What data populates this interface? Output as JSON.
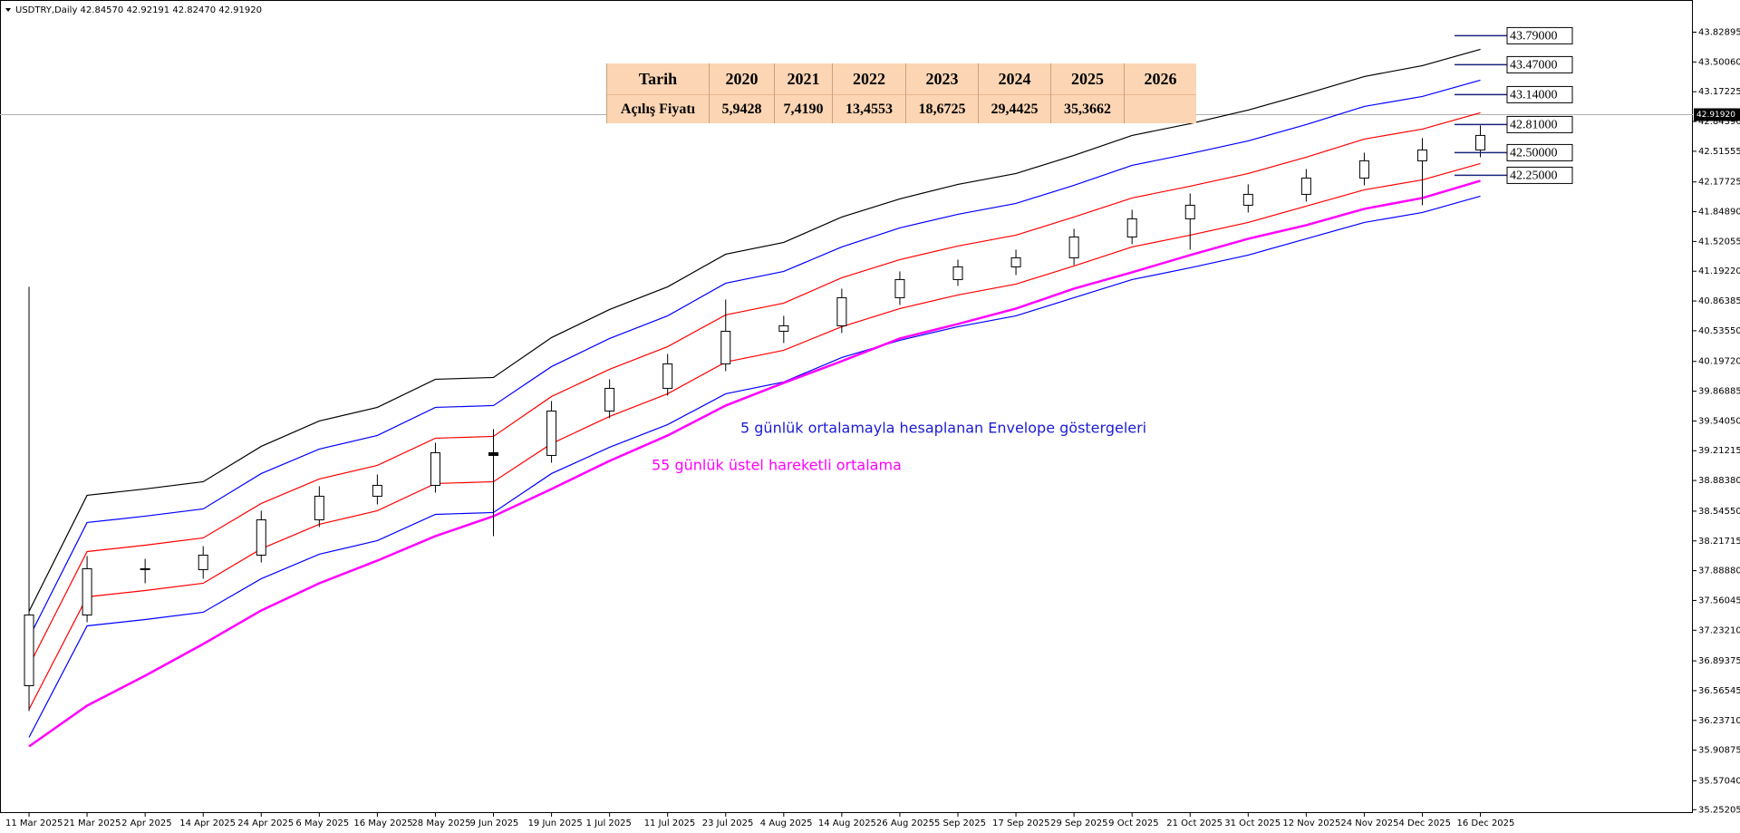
{
  "chart_data": {
    "type": "candlestick",
    "title": "USDTRY,Daily  42.84570 42.92191 42.82470 42.91920",
    "categories": [
      "11 Mar 2025",
      "21 Mar 2025",
      "2 Apr 2025",
      "14 Apr 2025",
      "24 Apr 2025",
      "6 May 2025",
      "16 May 2025",
      "28 May 2025",
      "9 Jun 2025",
      "19 Jun 2025",
      "1 Jul 2025",
      "11 Jul 2025",
      "23 Jul 2025",
      "4 Aug 2025",
      "14 Aug 2025",
      "26 Aug 2025",
      "5 Sep 2025",
      "17 Sep 2025",
      "29 Sep 2025",
      "9 Oct 2025",
      "21 Oct 2025",
      "31 Oct 2025",
      "12 Nov 2025",
      "24 Nov 2025",
      "4 Dec 2025",
      "16 Dec 2025"
    ],
    "open": [
      36.62,
      37.4,
      37.91,
      37.9,
      38.06,
      38.45,
      38.71,
      38.83,
      39.19,
      39.16,
      39.65,
      39.9,
      40.17,
      40.53,
      40.59,
      40.9,
      41.1,
      41.24,
      41.34,
      41.57,
      41.77,
      41.92,
      42.04,
      42.22,
      42.41,
      42.53
    ],
    "high": [
      41.02,
      38.05,
      38.02,
      38.16,
      38.55,
      38.82,
      38.95,
      39.3,
      39.45,
      39.76,
      40.0,
      40.28,
      40.88,
      40.7,
      41.0,
      41.19,
      41.32,
      41.43,
      41.66,
      41.87,
      42.05,
      42.15,
      42.32,
      42.5,
      42.66,
      42.8
    ],
    "low": [
      36.34,
      37.32,
      37.75,
      37.8,
      37.98,
      38.37,
      38.62,
      38.75,
      38.27,
      39.08,
      39.57,
      39.82,
      40.09,
      40.4,
      40.51,
      40.82,
      41.03,
      41.15,
      41.26,
      41.49,
      41.43,
      41.84,
      41.96,
      42.14,
      41.92,
      42.45
    ],
    "close": [
      37.4,
      37.91,
      37.9,
      38.06,
      38.45,
      38.71,
      38.83,
      39.19,
      39.16,
      39.65,
      39.9,
      40.17,
      40.53,
      40.59,
      40.9,
      41.1,
      41.24,
      41.34,
      41.57,
      41.77,
      41.92,
      42.04,
      42.22,
      42.41,
      42.53,
      42.69
    ],
    "series": [
      {
        "color": "#000000",
        "values": [
          37.44,
          38.72,
          38.79,
          38.87,
          39.26,
          39.54,
          39.69,
          40.0,
          40.02,
          40.46,
          40.77,
          41.02,
          41.38,
          41.51,
          41.79,
          41.99,
          42.15,
          42.27,
          42.47,
          42.69,
          42.82,
          42.97,
          43.15,
          43.34,
          43.46,
          43.64
        ]
      },
      {
        "color": "#0000ff",
        "values": [
          37.15,
          38.42,
          38.49,
          38.57,
          38.96,
          39.23,
          39.38,
          39.69,
          39.71,
          40.14,
          40.45,
          40.7,
          41.06,
          41.19,
          41.46,
          41.67,
          41.82,
          41.94,
          42.14,
          42.36,
          42.49,
          42.63,
          42.81,
          43.01,
          43.12,
          43.3
        ]
      },
      {
        "color": "#ff0000",
        "values": [
          36.84,
          38.1,
          38.17,
          38.25,
          38.63,
          38.9,
          39.05,
          39.35,
          39.37,
          39.81,
          40.11,
          40.36,
          40.71,
          40.84,
          41.12,
          41.32,
          41.47,
          41.59,
          41.79,
          42.0,
          42.13,
          42.27,
          42.45,
          42.65,
          42.76,
          42.94
        ]
      },
      {
        "color": "#ff0000",
        "values": [
          36.36,
          37.6,
          37.67,
          37.75,
          38.13,
          38.4,
          38.55,
          38.85,
          38.87,
          39.29,
          39.59,
          39.84,
          40.19,
          40.32,
          40.58,
          40.78,
          40.93,
          41.05,
          41.25,
          41.46,
          41.59,
          41.73,
          41.91,
          42.09,
          42.2,
          42.38
        ]
      },
      {
        "color": "#0000ff",
        "values": [
          36.05,
          37.28,
          37.35,
          37.43,
          37.8,
          38.07,
          38.22,
          38.51,
          38.53,
          38.96,
          39.25,
          39.5,
          39.84,
          39.97,
          40.24,
          40.43,
          40.58,
          40.7,
          40.9,
          41.1,
          41.23,
          41.37,
          41.55,
          41.73,
          41.84,
          42.02
        ]
      },
      {
        "color": "#ff00ff",
        "values": [
          35.95,
          36.4,
          36.73,
          37.08,
          37.45,
          37.75,
          38.0,
          38.27,
          38.49,
          38.79,
          39.1,
          39.38,
          39.71,
          39.96,
          40.2,
          40.45,
          40.61,
          40.78,
          41.0,
          41.18,
          41.37,
          41.55,
          41.7,
          41.88,
          42.0,
          42.19
        ]
      }
    ],
    "annotations": [
      {
        "text": "5 günlük ortalamayla hesaplanan Envelope göstergeleri",
        "color": "#1c1cd6"
      },
      {
        "text": "55 günlük üstel hareketli ortalama",
        "color": "#ff00ff"
      }
    ],
    "levels": [
      {
        "value": 43.79,
        "label": "43.79000"
      },
      {
        "value": 43.47,
        "label": "43.47000"
      },
      {
        "value": 43.14,
        "label": "43.14000"
      },
      {
        "value": 42.81,
        "label": "42.81000"
      },
      {
        "value": 42.5,
        "label": "42.50000"
      },
      {
        "value": 42.25,
        "label": "42.25000"
      }
    ],
    "last_price": {
      "value": 42.9192,
      "label": "42.91920"
    },
    "ylim": [
      35.215,
      44.184
    ],
    "yticks": [
      {
        "value": 43.82895,
        "label": "43.82895"
      },
      {
        "value": 43.5006,
        "label": "43.50060"
      },
      {
        "value": 43.17225,
        "label": "43.17225"
      },
      {
        "value": 42.8439,
        "label": "42.84390"
      },
      {
        "value": 42.51555,
        "label": "42.51555"
      },
      {
        "value": 42.17725,
        "label": "42.17725"
      },
      {
        "value": 41.8489,
        "label": "41.84890"
      },
      {
        "value": 41.52055,
        "label": "41.52055"
      },
      {
        "value": 41.1922,
        "label": "41.19220"
      },
      {
        "value": 40.86385,
        "label": "40.86385"
      },
      {
        "value": 40.5355,
        "label": "40.53550"
      },
      {
        "value": 40.1972,
        "label": "40.19720"
      },
      {
        "value": 39.86885,
        "label": "39.86885"
      },
      {
        "value": 39.5405,
        "label": "39.54050"
      },
      {
        "value": 39.21215,
        "label": "39.21215"
      },
      {
        "value": 38.8838,
        "label": "38.88380"
      },
      {
        "value": 38.5455,
        "label": "38.54550"
      },
      {
        "value": 38.21715,
        "label": "38.21715"
      },
      {
        "value": 37.8888,
        "label": "37.88880"
      },
      {
        "value": 37.56045,
        "label": "37.56045"
      },
      {
        "value": 37.2321,
        "label": "37.23210"
      },
      {
        "value": 36.89375,
        "label": "36.89375"
      },
      {
        "value": 36.56545,
        "label": "36.56545"
      },
      {
        "value": 36.2371,
        "label": "36.23710"
      },
      {
        "value": 35.90875,
        "label": "35.90875"
      },
      {
        "value": 35.5704,
        "label": "35.57040"
      },
      {
        "value": 35.25205,
        "label": "35.25205"
      }
    ],
    "grid": false
  },
  "table": {
    "header": [
      "Tarih",
      "2020",
      "2021",
      "2022",
      "2023",
      "2024",
      "2025",
      "2026"
    ],
    "rows": [
      [
        "Açılış Fiyatı",
        "5,9428",
        "7,4190",
        "13,4553",
        "18,6725",
        "29,4425",
        "35,3662"
      ]
    ]
  }
}
